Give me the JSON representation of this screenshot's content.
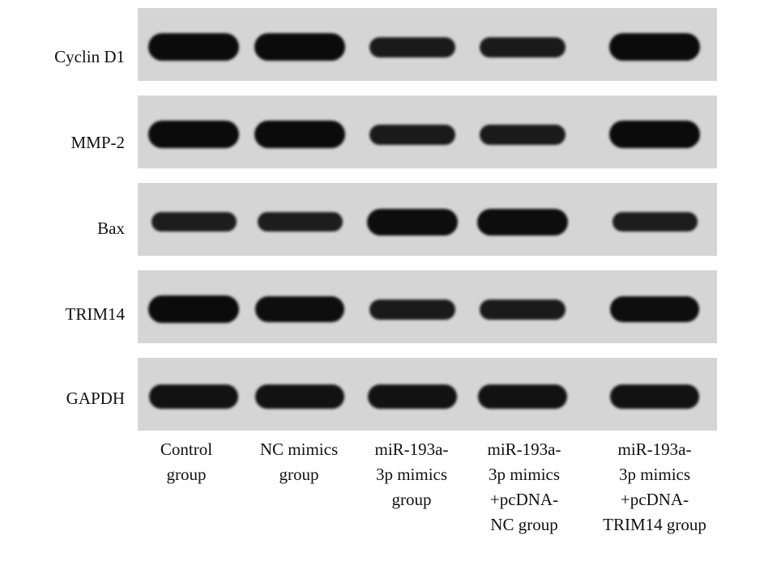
{
  "rows": [
    {
      "label": "Cyclin D1",
      "intensity": [
        1.0,
        1.0,
        0.55,
        0.55,
        1.0
      ]
    },
    {
      "label": "MMP-2",
      "intensity": [
        1.0,
        1.0,
        0.55,
        0.55,
        1.0
      ]
    },
    {
      "label": "Bax",
      "intensity": [
        0.5,
        0.5,
        0.95,
        0.95,
        0.5
      ]
    },
    {
      "label": "TRIM14",
      "intensity": [
        1.0,
        0.9,
        0.55,
        0.55,
        0.9
      ]
    },
    {
      "label": "GAPDH",
      "intensity": [
        0.8,
        0.8,
        0.8,
        0.8,
        0.8
      ]
    }
  ],
  "lanes": [
    {
      "label": "Control\ngroup"
    },
    {
      "label": "NC mimics\ngroup"
    },
    {
      "label": "miR-193a-\n3p mimics\ngroup"
    },
    {
      "label": "miR-193a-\n3p mimics\n+pcDNA-\nNC group"
    },
    {
      "label": "miR-193a-\n3p mimics\n+pcDNA-\nTRIM14 group"
    }
  ]
}
